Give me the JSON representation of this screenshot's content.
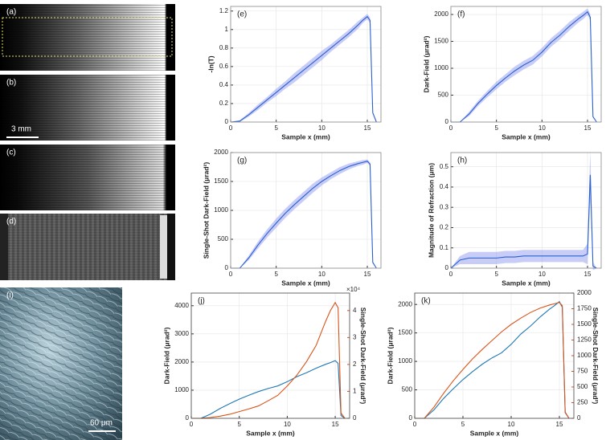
{
  "images": {
    "labels": [
      "(a)",
      "(b)",
      "(c)",
      "(d)",
      "(i)"
    ],
    "scale_bars": [
      "3 mm",
      "60 μm"
    ]
  },
  "chart_data": [
    {
      "type": "line",
      "panel_label": "(e)",
      "xlabel": "Sample x (mm)",
      "ylabel": "-ln(T)",
      "x": [
        0,
        1,
        2,
        3,
        4,
        5,
        6,
        7,
        8,
        9,
        10,
        11,
        12,
        13,
        14,
        14.5,
        15,
        15.3,
        15.6,
        16
      ],
      "xlim": [
        0,
        16.5
      ],
      "xticks": [
        0,
        5,
        10,
        15
      ],
      "ylim": [
        0,
        1.25
      ],
      "yticks": [
        0,
        0.2,
        0.4,
        0.6,
        0.8,
        1,
        1.2
      ],
      "grid": true,
      "series": [
        {
          "color": "#2a5fd0",
          "values": [
            0,
            0.01,
            0.08,
            0.16,
            0.24,
            0.32,
            0.4,
            0.48,
            0.56,
            0.64,
            0.72,
            0.8,
            0.88,
            0.96,
            1.05,
            1.1,
            1.14,
            1.1,
            0.1,
            0
          ],
          "error": [
            0,
            0.01,
            0.02,
            0.03,
            0.03,
            0.04,
            0.04,
            0.05,
            0.05,
            0.05,
            0.05,
            0.04,
            0.04,
            0.04,
            0.04,
            0.03,
            0.03,
            0.03,
            0.01,
            0
          ]
        }
      ]
    },
    {
      "type": "line",
      "panel_label": "(f)",
      "xlabel": "Sample x (mm)",
      "ylabel": "Dark-Field (μrad²)",
      "x": [
        0,
        1,
        2,
        3,
        4,
        5,
        6,
        7,
        8,
        9,
        10,
        11,
        12,
        13,
        14,
        14.5,
        15,
        15.3,
        15.6,
        16
      ],
      "xlim": [
        0,
        16.5
      ],
      "xticks": [
        0,
        5,
        10,
        15
      ],
      "ylim": [
        0,
        2150
      ],
      "yticks": [
        0,
        500,
        1000,
        1500,
        2000
      ],
      "grid": true,
      "series": [
        {
          "color": "#2a5fd0",
          "values": [
            0,
            0,
            150,
            350,
            520,
            680,
            820,
            950,
            1060,
            1150,
            1300,
            1480,
            1620,
            1780,
            1920,
            1980,
            2050,
            1950,
            100,
            0
          ],
          "error": [
            0,
            0,
            40,
            50,
            60,
            70,
            70,
            80,
            80,
            80,
            80,
            80,
            80,
            80,
            70,
            70,
            60,
            60,
            20,
            0
          ]
        }
      ]
    },
    {
      "type": "line",
      "panel_label": "(g)",
      "xlabel": "Sample x (mm)",
      "ylabel": "Single-Shot Dark-Field (μrad²)",
      "x": [
        0,
        1,
        2,
        3,
        4,
        5,
        6,
        7,
        8,
        9,
        10,
        11,
        12,
        13,
        14,
        14.5,
        15,
        15.3,
        15.6,
        16
      ],
      "xlim": [
        0,
        16.5
      ],
      "xticks": [
        0,
        5,
        10,
        15
      ],
      "ylim": [
        0,
        2000
      ],
      "yticks": [
        0,
        500,
        1000,
        1500,
        2000
      ],
      "grid": true,
      "series": [
        {
          "color": "#2a5fd0",
          "values": [
            0,
            0,
            180,
            400,
            600,
            780,
            950,
            1100,
            1240,
            1380,
            1500,
            1600,
            1690,
            1760,
            1810,
            1830,
            1850,
            1800,
            100,
            0
          ],
          "error": [
            0,
            0,
            40,
            60,
            70,
            80,
            80,
            80,
            80,
            80,
            70,
            60,
            60,
            50,
            40,
            40,
            30,
            30,
            20,
            0
          ]
        }
      ]
    },
    {
      "type": "line",
      "panel_label": "(h)",
      "xlabel": "Sample x (mm)",
      "ylabel": "Magnitude of Refraction (μm)",
      "x": [
        0,
        1,
        2,
        3,
        4,
        5,
        6,
        7,
        8,
        9,
        10,
        11,
        12,
        13,
        14,
        14.5,
        15,
        15.3,
        15.6,
        16
      ],
      "xlim": [
        0,
        16.5
      ],
      "xticks": [
        0,
        5,
        10,
        15
      ],
      "ylim": [
        0,
        0.57
      ],
      "yticks": [
        0,
        0.1,
        0.2,
        0.3,
        0.4,
        0.5
      ],
      "grid": true,
      "series": [
        {
          "color": "#2a5fd0",
          "values": [
            0,
            0.04,
            0.05,
            0.05,
            0.05,
            0.05,
            0.055,
            0.055,
            0.06,
            0.06,
            0.06,
            0.06,
            0.06,
            0.06,
            0.06,
            0.06,
            0.07,
            0.46,
            0.01,
            0
          ],
          "error": [
            0,
            0.02,
            0.03,
            0.03,
            0.03,
            0.03,
            0.03,
            0.03,
            0.03,
            0.03,
            0.03,
            0.03,
            0.03,
            0.03,
            0.03,
            0.03,
            0.05,
            0.12,
            0.02,
            0
          ]
        }
      ]
    },
    {
      "type": "line",
      "panel_label": "(j)",
      "xlabel": "Sample x (mm)",
      "ylabel": "Dark-Field (μrad²)",
      "y2label": "Single-Shot Dark-Field (μrad²)",
      "y2multiplier": "×10⁴",
      "x": [
        0,
        1,
        2,
        3,
        4,
        5,
        6,
        7,
        8,
        9,
        10,
        11,
        12,
        13,
        14,
        14.5,
        15,
        15.3,
        15.6,
        16
      ],
      "xlim": [
        0,
        16.5
      ],
      "xticks": [
        0,
        5,
        10,
        15
      ],
      "ylim": [
        0,
        4450
      ],
      "yticks": [
        0,
        1000,
        2000,
        3000,
        4000
      ],
      "y2lim": [
        0,
        46500
      ],
      "y2ticks": [
        0,
        {
          "value": 10000,
          "label": "1"
        },
        {
          "value": 20000,
          "label": "2"
        },
        {
          "value": 30000,
          "label": "3"
        },
        {
          "value": 40000,
          "label": "4"
        }
      ],
      "grid": true,
      "series": [
        {
          "color": "#1f77b4",
          "values": [
            0,
            0,
            150,
            350,
            520,
            680,
            820,
            950,
            1060,
            1150,
            1300,
            1480,
            1620,
            1780,
            1920,
            1980,
            2050,
            1950,
            100,
            0
          ]
        },
        {
          "color": "#d95319",
          "axis": "y2",
          "values": [
            0,
            0,
            300,
            800,
            1500,
            2500,
            3500,
            4600,
            6500,
            8500,
            12000,
            16000,
            21000,
            27000,
            36000,
            40000,
            43000,
            41000,
            2000,
            0
          ]
        }
      ]
    },
    {
      "type": "line",
      "panel_label": "(k)",
      "xlabel": "Sample x (mm)",
      "ylabel": "Dark-Field (μrad²)",
      "y2label": "Single-Shot Dark-Field (μrad²)",
      "x": [
        0,
        1,
        2,
        3,
        4,
        5,
        6,
        7,
        8,
        9,
        10,
        11,
        12,
        13,
        14,
        14.5,
        15,
        15.3,
        15.6,
        16
      ],
      "xlim": [
        0,
        16.5
      ],
      "xticks": [
        0,
        5,
        10,
        15
      ],
      "ylim": [
        0,
        2200
      ],
      "yticks": [
        0,
        500,
        1000,
        1500,
        2000
      ],
      "y2lim": [
        0,
        2000
      ],
      "y2ticks": [
        0,
        250,
        500,
        750,
        1000,
        1250,
        1500,
        1750,
        2000
      ],
      "grid": true,
      "series": [
        {
          "color": "#1f77b4",
          "values": [
            0,
            0,
            150,
            350,
            520,
            680,
            820,
            950,
            1060,
            1150,
            1300,
            1480,
            1620,
            1780,
            1920,
            1980,
            2050,
            1950,
            100,
            0
          ]
        },
        {
          "color": "#d95319",
          "axis": "y2",
          "values": [
            0,
            0,
            180,
            400,
            600,
            780,
            950,
            1100,
            1240,
            1380,
            1500,
            1600,
            1690,
            1760,
            1810,
            1830,
            1850,
            1800,
            100,
            0
          ]
        }
      ]
    }
  ]
}
